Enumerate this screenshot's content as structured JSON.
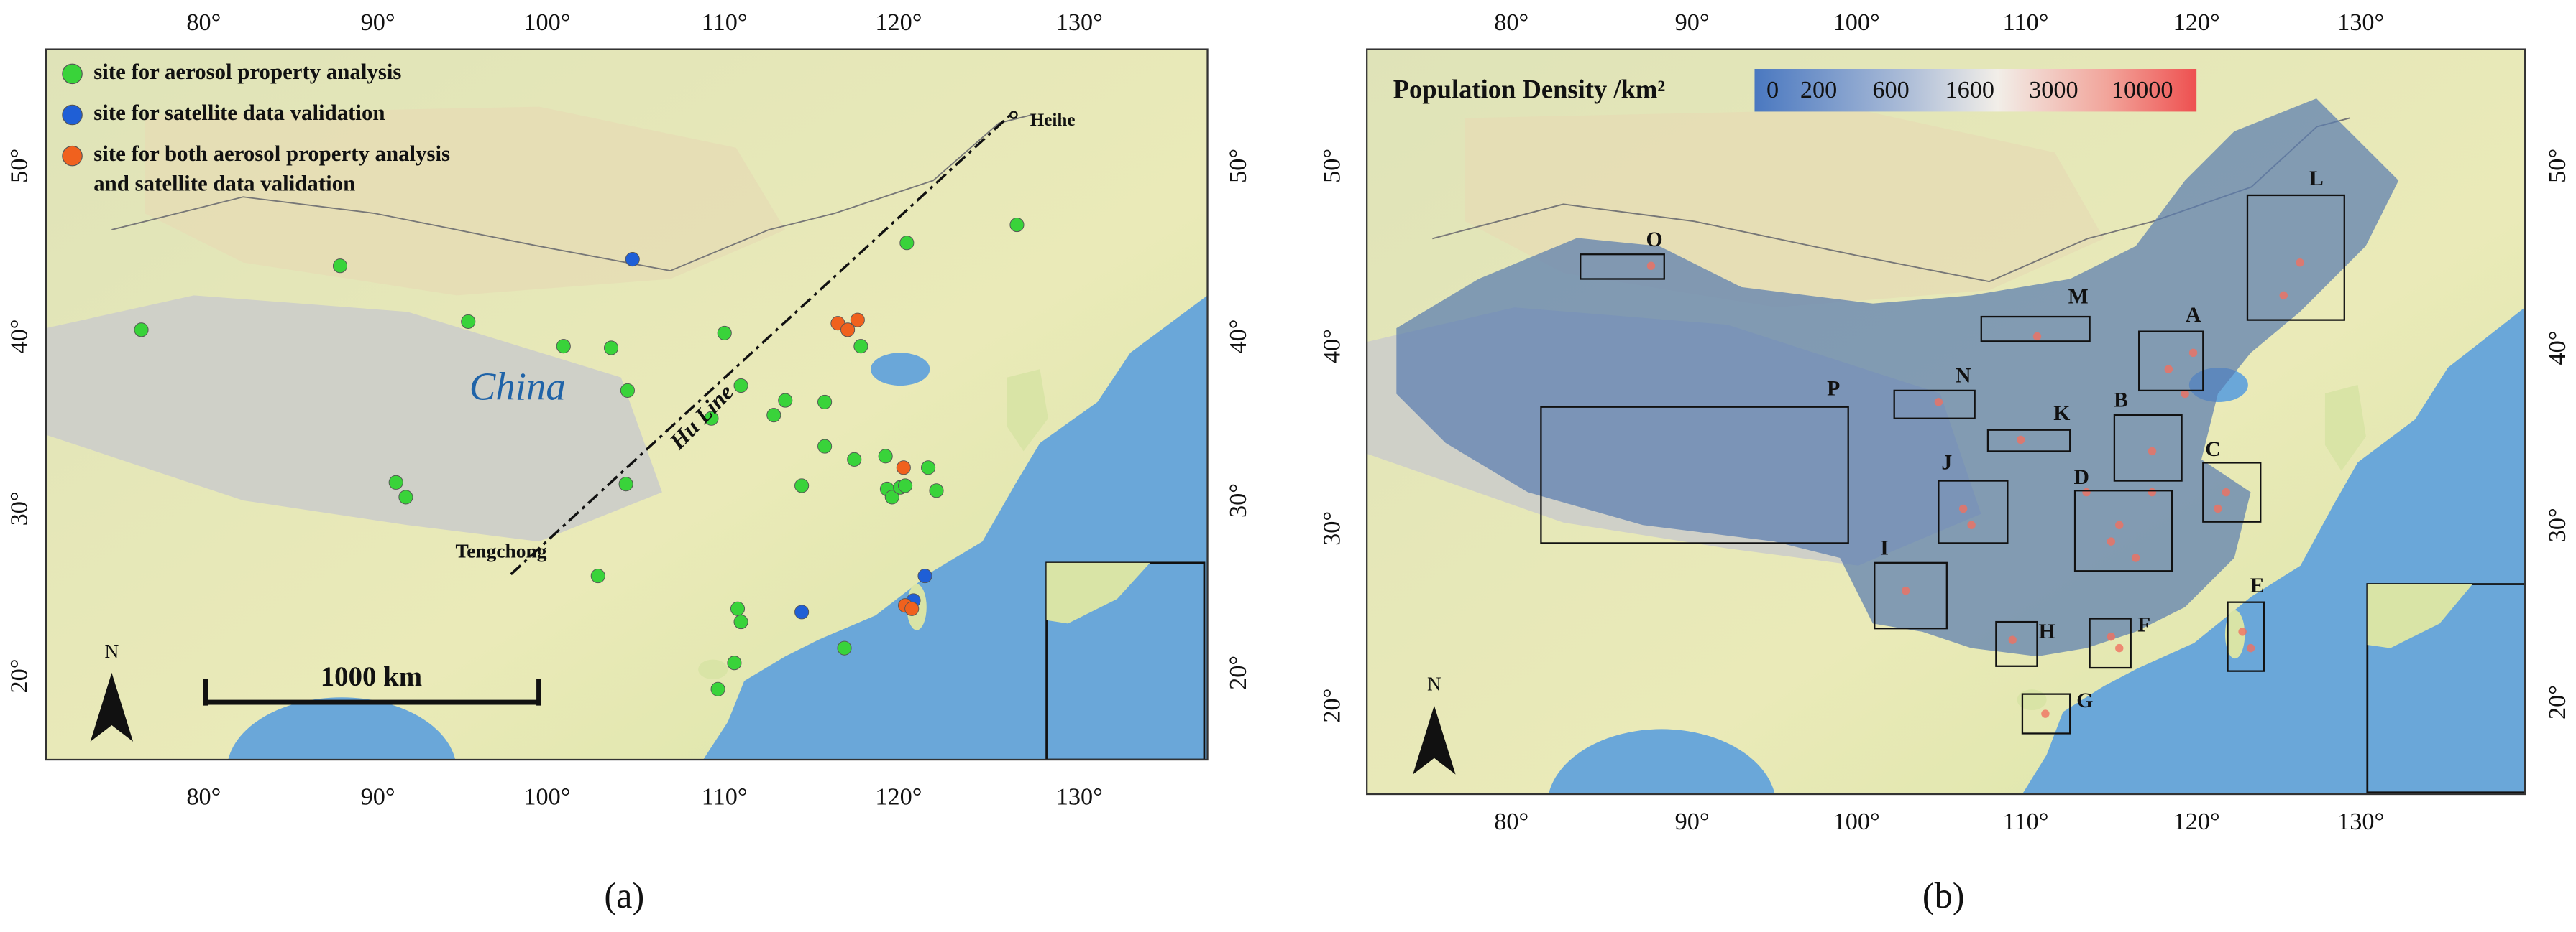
{
  "panel_a": {
    "lon_ticks_top": [
      "80°",
      "90°",
      "100°",
      "110°",
      "120°",
      "130°"
    ],
    "lon_ticks_bottom": [
      "80°",
      "90°",
      "100°",
      "110°",
      "120°",
      "130°"
    ],
    "lat_ticks_left": [
      "50°",
      "40°",
      "30°",
      "20°"
    ],
    "lat_ticks_right": [
      "50°",
      "40°",
      "30°",
      "20°"
    ],
    "legend": [
      [
        "site for aerosol property analysis"
      ],
      [
        "site for satellite data validation"
      ],
      [
        "site for both aerosol property analysis",
        "and satellite data validation"
      ]
    ],
    "labels": {
      "country": "China",
      "line": "Hu Line",
      "north_end": "Heihe",
      "south_end": "Tengchong",
      "scale": "1000 km",
      "compass": "N"
    },
    "caption": "(a)"
  },
  "panel_b": {
    "lon_ticks_top": [
      "80°",
      "90°",
      "100°",
      "110°",
      "120°",
      "130°"
    ],
    "lon_ticks_bottom": [
      "80°",
      "90°",
      "100°",
      "110°",
      "120°",
      "130°"
    ],
    "lat_ticks_left": [
      "50°",
      "40°",
      "30°",
      "20°"
    ],
    "lat_ticks_right": [
      "50°",
      "40°",
      "30°",
      "20°"
    ],
    "colorbar_title": "Population Density /km²",
    "colorbar_ticks": [
      "0",
      "200",
      "600",
      "1600",
      "3000",
      "10000"
    ],
    "regions": [
      "A",
      "B",
      "C",
      "D",
      "E",
      "F",
      "G",
      "H",
      "I",
      "J",
      "K",
      "L",
      "M",
      "N",
      "O",
      "P"
    ],
    "compass": "N",
    "caption": "(b)"
  }
}
